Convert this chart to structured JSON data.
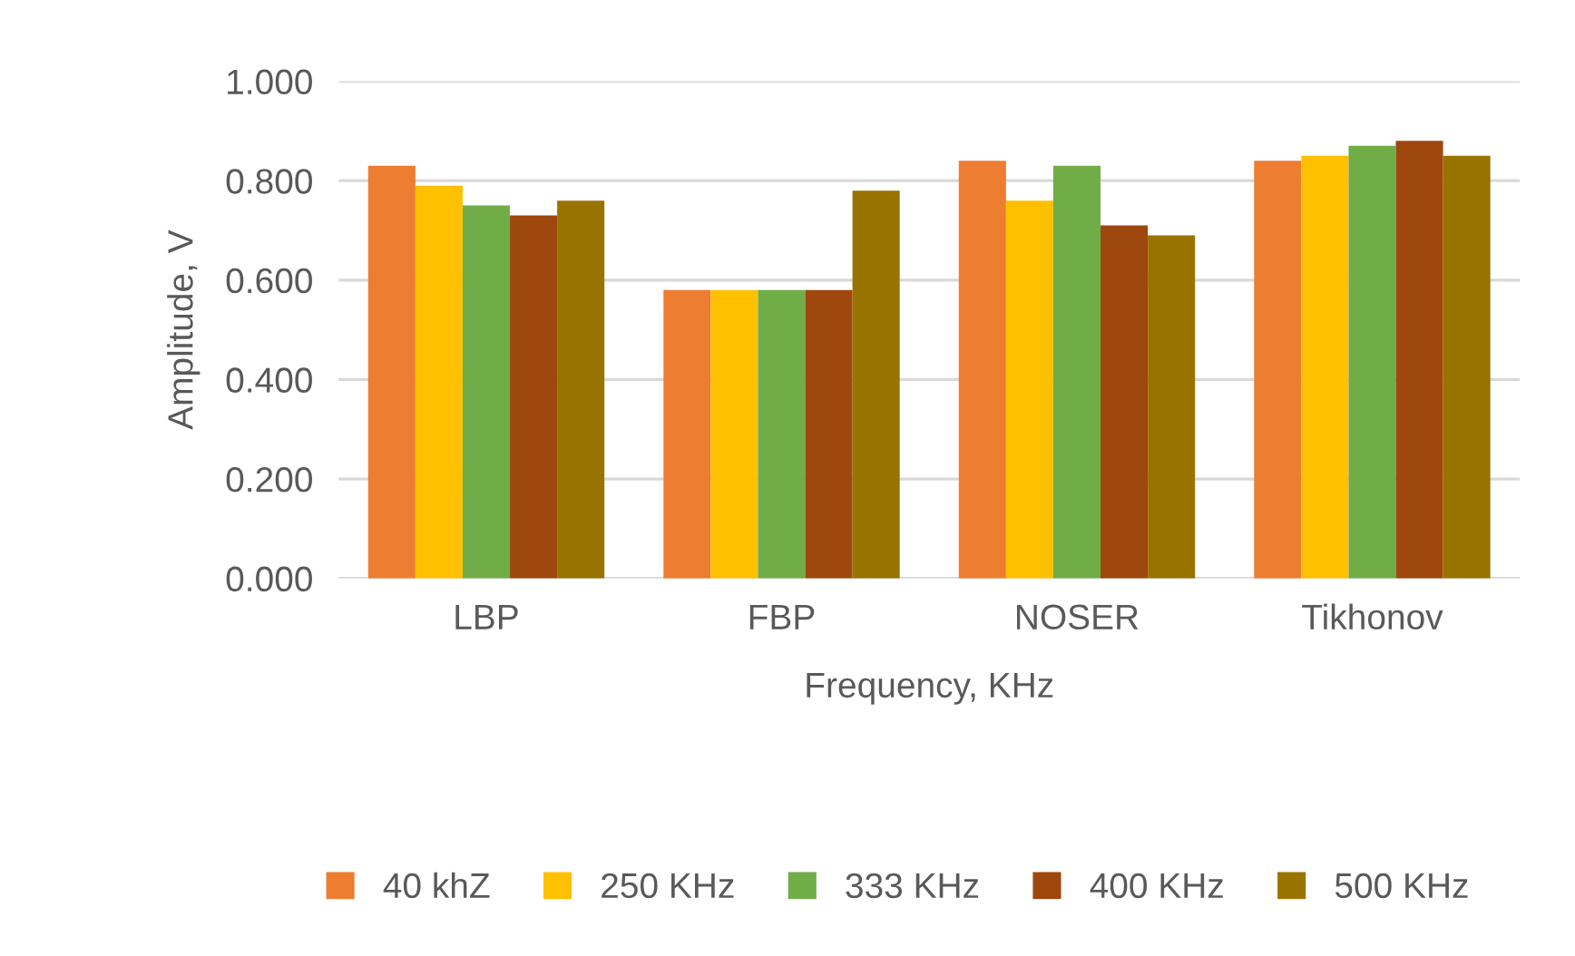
{
  "chart_data": {
    "type": "bar",
    "xlabel": "Frequency, KHz",
    "ylabel": "Amplitude, V",
    "categories": [
      "LBP",
      "FBP",
      "NOSER",
      "Tikhonov"
    ],
    "series": [
      {
        "name": "40 khZ",
        "color": "#ed7d31",
        "values": [
          0.83,
          0.58,
          0.84,
          0.84
        ]
      },
      {
        "name": "250 KHz",
        "color": "#ffc000",
        "values": [
          0.79,
          0.58,
          0.76,
          0.85
        ]
      },
      {
        "name": "333 KHz",
        "color": "#70ad47",
        "values": [
          0.75,
          0.58,
          0.83,
          0.87
        ]
      },
      {
        "name": "400 KHz",
        "color": "#9e480e",
        "values": [
          0.73,
          0.58,
          0.71,
          0.88
        ]
      },
      {
        "name": "500 KHz",
        "color": "#997300",
        "values": [
          0.76,
          0.78,
          0.69,
          0.85
        ]
      }
    ],
    "ylim": [
      0,
      1
    ],
    "yticks": [
      {
        "value": 0,
        "label": "0.000"
      },
      {
        "value": 0.2,
        "label": "0.200"
      },
      {
        "value": 0.4,
        "label": "0.400"
      },
      {
        "value": 0.6,
        "label": "0.600"
      },
      {
        "value": 0.8,
        "label": "0.800"
      },
      {
        "value": 1,
        "label": "1.000"
      }
    ],
    "grid": "y",
    "legend": "bottom"
  }
}
